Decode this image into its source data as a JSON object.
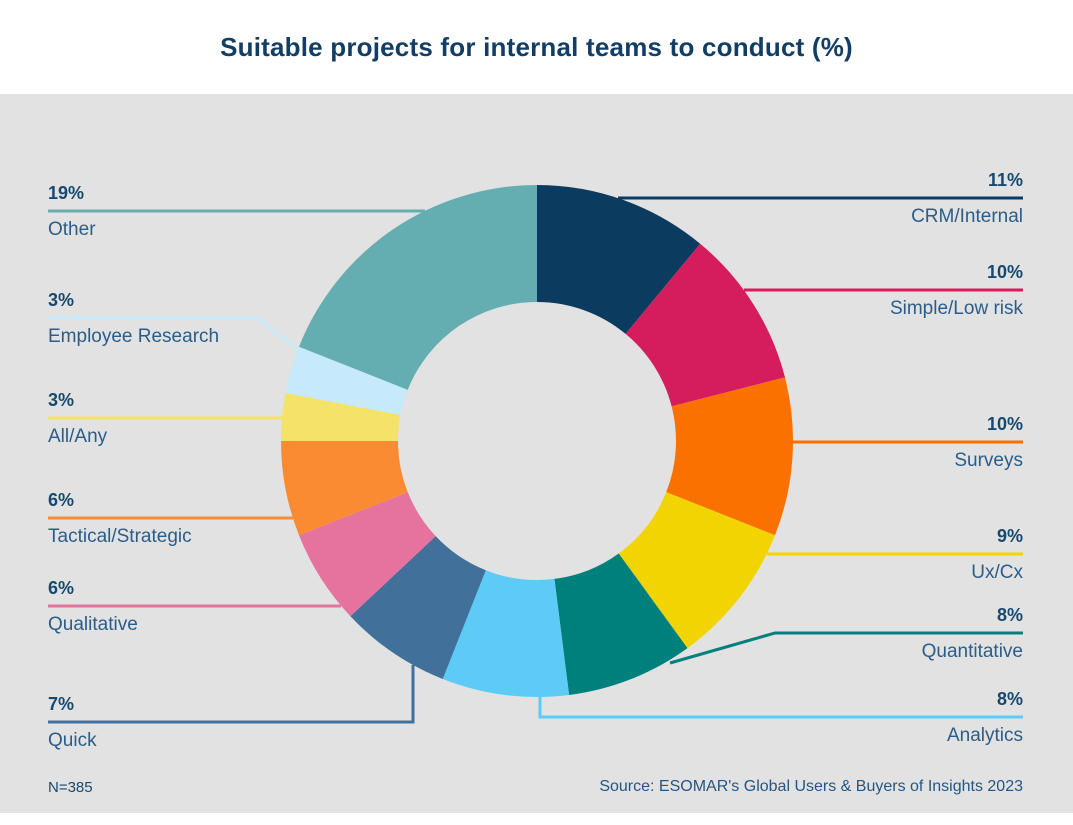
{
  "title": "Suitable projects for internal teams to conduct (%)",
  "colors": {
    "panel_background": "#e2e2e2",
    "header_background": "#ffffff",
    "title_text": "#123e66",
    "label_text": "#2a5d89",
    "pct_text": "#17496f"
  },
  "chart_data": {
    "type": "pie",
    "subtype": "donut",
    "title": "Suitable projects for internal teams to conduct (%)",
    "unit": "%",
    "sample_size": "N=385",
    "source": "Source: ESOMAR's Global Users & Buyers of Insights 2023",
    "start_angle_deg": 0,
    "direction": "clockwise",
    "slices": [
      {
        "label": "CRM/Internal",
        "value": 11,
        "pct_label": "11%",
        "color": "#0b3b5e"
      },
      {
        "label": "Simple/Low risk",
        "value": 10,
        "pct_label": "10%",
        "color": "#d51d5e"
      },
      {
        "label": "Surveys",
        "value": 10,
        "pct_label": "10%",
        "color": "#fb7100"
      },
      {
        "label": "Ux/Cx",
        "value": 9,
        "pct_label": "9%",
        "color": "#f3d403"
      },
      {
        "label": "Quantitative",
        "value": 8,
        "pct_label": "8%",
        "color": "#00807d"
      },
      {
        "label": "Analytics",
        "value": 8,
        "pct_label": "8%",
        "color": "#5ccbf5"
      },
      {
        "label": "Quick",
        "value": 7,
        "pct_label": "7%",
        "color": "#41709b"
      },
      {
        "label": "Qualitative",
        "value": 6,
        "pct_label": "6%",
        "color": "#e5739e"
      },
      {
        "label": "Tactical/Strategic",
        "value": 6,
        "pct_label": "6%",
        "color": "#fb8b33"
      },
      {
        "label": "All/Any",
        "value": 3,
        "pct_label": "3%",
        "color": "#f5e369"
      },
      {
        "label": "Employee Research",
        "value": 3,
        "pct_label": "3%",
        "color": "#c6eafb"
      },
      {
        "label": "Other",
        "value": 19,
        "pct_label": "19%",
        "color": "#64aeb2"
      }
    ]
  }
}
